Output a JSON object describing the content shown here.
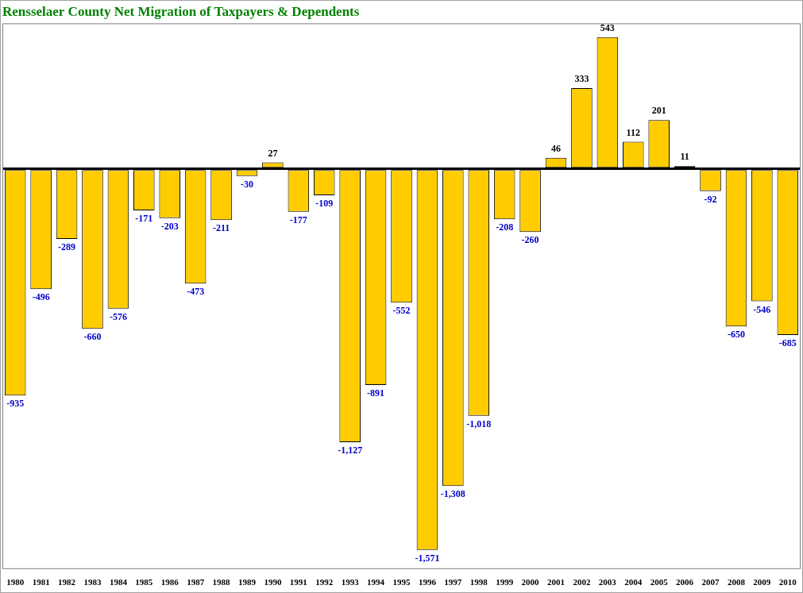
{
  "chart_data": {
    "type": "bar",
    "title": "Rensselaer County Net Migration of Taxpayers & Dependents",
    "categories": [
      "1980",
      "1981",
      "1982",
      "1983",
      "1984",
      "1985",
      "1986",
      "1987",
      "1988",
      "1989",
      "1990",
      "1991",
      "1992",
      "1993",
      "1994",
      "1995",
      "1996",
      "1997",
      "1998",
      "1999",
      "2000",
      "2001",
      "2002",
      "2003",
      "2004",
      "2005",
      "2006",
      "2007",
      "2008",
      "2009",
      "2010"
    ],
    "values": [
      -935,
      -496,
      -289,
      -660,
      -576,
      -171,
      -203,
      -473,
      -211,
      -30,
      27,
      -177,
      -109,
      -1127,
      -891,
      -552,
      -1571,
      -1308,
      -1018,
      -208,
      -260,
      46,
      333,
      543,
      112,
      201,
      11,
      -92,
      -650,
      -546,
      -685
    ],
    "value_labels": [
      "-935",
      "-496",
      "-289",
      "-660",
      "-576",
      "-171",
      "-203",
      "-473",
      "-211",
      "-30",
      "27",
      "-177",
      "-109",
      "-1,127",
      "-891",
      "-552",
      "-1,571",
      "-1,308",
      "-1,018",
      "-208",
      "-260",
      "46",
      "333",
      "543",
      "112",
      "201",
      "11",
      "-92",
      "-650",
      "-546",
      "-685"
    ],
    "color": "#ffcc00",
    "ylim": [
      -1650,
      600
    ],
    "yticks": [
      0
    ],
    "data_labels": true,
    "tick_labels": "x"
  }
}
